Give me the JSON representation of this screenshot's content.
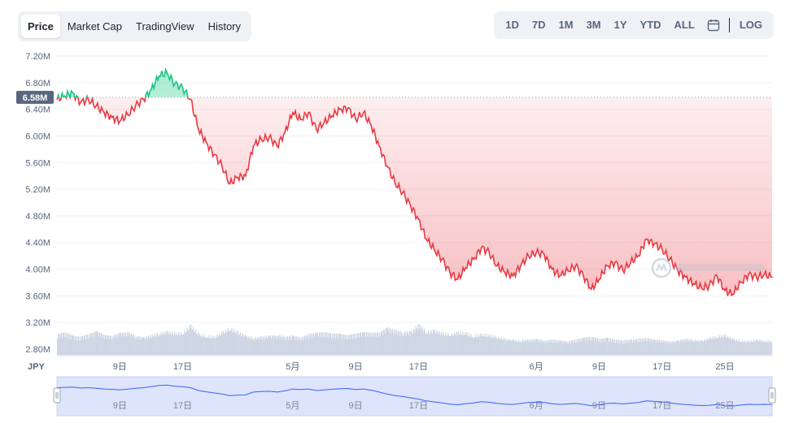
{
  "tabs": [
    {
      "label": "Price",
      "active": true
    },
    {
      "label": "Market Cap",
      "active": false
    },
    {
      "label": "TradingView",
      "active": false
    },
    {
      "label": "History",
      "active": false
    }
  ],
  "ranges": [
    {
      "label": "1D"
    },
    {
      "label": "7D"
    },
    {
      "label": "1M"
    },
    {
      "label": "3M"
    },
    {
      "label": "1Y"
    },
    {
      "label": "YTD"
    },
    {
      "label": "ALL"
    }
  ],
  "calendar_icon": "calendar-icon",
  "log_label": "LOG",
  "currency": "JPY",
  "current_price_label": "6.58M",
  "colors": {
    "up": "#16c784",
    "down": "#ea3943",
    "volume": "#cfd6e4",
    "navigator_line": "#3861fb",
    "navigator_fill": "#dde4fb"
  },
  "chart_data": {
    "type": "line",
    "unit": "JPY",
    "baseline": 6.58,
    "ylim": [
      2.8,
      7.2
    ],
    "yticks": [
      {
        "value": 2.8,
        "label": "2.80M"
      },
      {
        "value": 3.2,
        "label": "3.20M"
      },
      {
        "value": 3.6,
        "label": "3.60M"
      },
      {
        "value": 4.0,
        "label": "4.00M"
      },
      {
        "value": 4.4,
        "label": "4.40M"
      },
      {
        "value": 4.8,
        "label": "4.80M"
      },
      {
        "value": 5.2,
        "label": "5.20M"
      },
      {
        "value": 5.6,
        "label": "5.60M"
      },
      {
        "value": 6.0,
        "label": "6.00M"
      },
      {
        "value": 6.4,
        "label": "6.40M"
      },
      {
        "value": 6.8,
        "label": "6.80M"
      },
      {
        "value": 7.2,
        "label": "7.20M"
      }
    ],
    "xlim": [
      0,
      91
    ],
    "xticks": [
      {
        "value": 8,
        "label": "9日"
      },
      {
        "value": 16,
        "label": "17日"
      },
      {
        "value": 30,
        "label": "5月"
      },
      {
        "value": 38,
        "label": "9日"
      },
      {
        "value": 46,
        "label": "17日"
      },
      {
        "value": 61,
        "label": "6月"
      },
      {
        "value": 69,
        "label": "9日"
      },
      {
        "value": 77,
        "label": "17日"
      },
      {
        "value": 85,
        "label": "25日"
      }
    ],
    "x": [
      0,
      1,
      2,
      3,
      4,
      5,
      6,
      7,
      8,
      9,
      10,
      11,
      12,
      13,
      14,
      15,
      16,
      17,
      18,
      19,
      20,
      21,
      22,
      23,
      24,
      25,
      26,
      27,
      28,
      29,
      30,
      31,
      32,
      33,
      34,
      35,
      36,
      37,
      38,
      39,
      40,
      41,
      42,
      43,
      44,
      45,
      46,
      47,
      48,
      49,
      50,
      51,
      52,
      53,
      54,
      55,
      56,
      57,
      58,
      59,
      60,
      61,
      62,
      63,
      64,
      65,
      66,
      67,
      68,
      69,
      70,
      71,
      72,
      73,
      74,
      75,
      76,
      77,
      78,
      79,
      80,
      81,
      82,
      83,
      84,
      85,
      86,
      87,
      88,
      89,
      90,
      91
    ],
    "price": [
      6.55,
      6.6,
      6.65,
      6.5,
      6.55,
      6.45,
      6.35,
      6.28,
      6.22,
      6.32,
      6.45,
      6.55,
      6.7,
      6.9,
      6.95,
      6.78,
      6.72,
      6.55,
      6.1,
      5.9,
      5.72,
      5.55,
      5.28,
      5.38,
      5.4,
      5.85,
      5.95,
      5.98,
      5.85,
      6.05,
      6.35,
      6.25,
      6.35,
      6.1,
      6.2,
      6.3,
      6.4,
      6.42,
      6.25,
      6.35,
      6.15,
      5.85,
      5.55,
      5.3,
      5.15,
      4.95,
      4.75,
      4.45,
      4.3,
      4.15,
      3.95,
      3.85,
      4.02,
      4.15,
      4.32,
      4.25,
      4.05,
      3.95,
      3.9,
      4.05,
      4.2,
      4.25,
      4.22,
      4.0,
      3.9,
      3.98,
      4.05,
      3.9,
      3.7,
      3.85,
      4.05,
      4.1,
      3.98,
      4.1,
      4.2,
      4.45,
      4.38,
      4.3,
      4.15,
      3.98,
      3.88,
      3.78,
      3.72,
      3.75,
      3.9,
      3.68,
      3.62,
      3.8,
      3.92,
      3.88,
      3.92,
      3.88
    ],
    "volume": [
      0.55,
      0.6,
      0.5,
      0.48,
      0.55,
      0.62,
      0.52,
      0.5,
      0.58,
      0.6,
      0.5,
      0.46,
      0.52,
      0.58,
      0.62,
      0.57,
      0.6,
      0.78,
      0.55,
      0.5,
      0.48,
      0.6,
      0.72,
      0.6,
      0.5,
      0.45,
      0.48,
      0.5,
      0.52,
      0.48,
      0.5,
      0.46,
      0.55,
      0.58,
      0.6,
      0.56,
      0.55,
      0.52,
      0.56,
      0.6,
      0.58,
      0.6,
      0.72,
      0.65,
      0.6,
      0.62,
      0.8,
      0.62,
      0.65,
      0.58,
      0.55,
      0.6,
      0.58,
      0.5,
      0.55,
      0.52,
      0.48,
      0.42,
      0.4,
      0.38,
      0.4,
      0.42,
      0.38,
      0.4,
      0.38,
      0.36,
      0.4,
      0.45,
      0.48,
      0.42,
      0.45,
      0.4,
      0.38,
      0.4,
      0.42,
      0.45,
      0.4,
      0.38,
      0.36,
      0.38,
      0.42,
      0.4,
      0.38,
      0.45,
      0.5,
      0.52,
      0.42,
      0.38,
      0.36,
      0.4,
      0.38,
      0.36
    ]
  }
}
